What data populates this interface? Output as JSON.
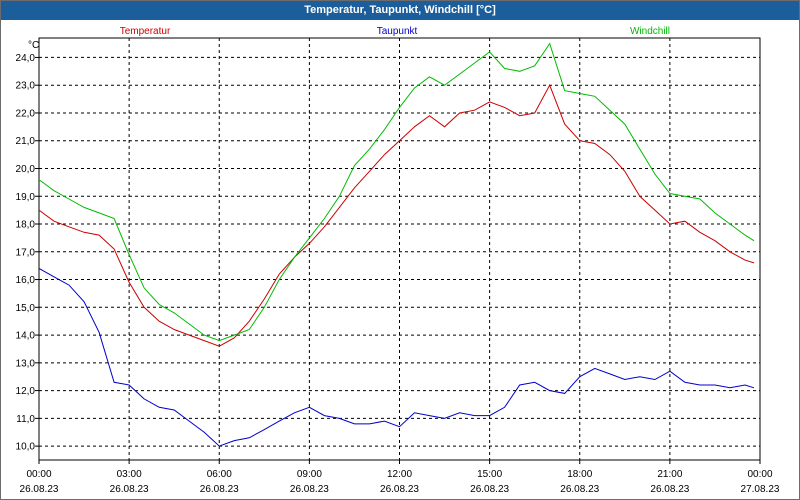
{
  "chart_data": {
    "type": "line",
    "title": "Temperatur, Taupunkt, Windchill [°C]",
    "ylabel": "°C",
    "ylim": [
      9.5,
      24.7
    ],
    "yticks": [
      10.0,
      11.0,
      12.0,
      13.0,
      14.0,
      15.0,
      16.0,
      17.0,
      18.0,
      19.0,
      20.0,
      21.0,
      22.0,
      23.0,
      24.0
    ],
    "ytick_labels": [
      "10,0",
      "11,0",
      "12,0",
      "13,0",
      "14,0",
      "15,0",
      "16,0",
      "17,0",
      "18,0",
      "19,0",
      "20,0",
      "21,0",
      "22,0",
      "23,0",
      "24,0"
    ],
    "xlim": [
      0,
      24
    ],
    "xticks": [
      {
        "time": "00:00",
        "date": "26.08.23"
      },
      {
        "time": "03:00",
        "date": "26.08.23"
      },
      {
        "time": "06:00",
        "date": "26.08.23"
      },
      {
        "time": "09:00",
        "date": "26.08.23"
      },
      {
        "time": "12:00",
        "date": "26.08.23"
      },
      {
        "time": "15:00",
        "date": "26.08.23"
      },
      {
        "time": "18:00",
        "date": "26.08.23"
      },
      {
        "time": "21:00",
        "date": "26.08.23"
      },
      {
        "time": "00:00",
        "date": "27.08.23"
      }
    ],
    "grid": true,
    "legend_position": "top",
    "series": [
      {
        "name": "Temperatur",
        "color": "#cc0000",
        "x": [
          0,
          0.5,
          1,
          1.5,
          2,
          2.5,
          3,
          3.5,
          4,
          4.5,
          5,
          5.5,
          6,
          6.5,
          7,
          7.5,
          8,
          8.5,
          9,
          9.5,
          10,
          10.5,
          11,
          11.5,
          12,
          12.5,
          13,
          13.5,
          14,
          14.5,
          15,
          15.5,
          16,
          16.5,
          17,
          17.5,
          18,
          18.5,
          19,
          19.5,
          20,
          20.5,
          21,
          21.5,
          22,
          22.5,
          23,
          23.5,
          23.8
        ],
        "y": [
          18.5,
          18.1,
          17.9,
          17.7,
          17.6,
          17.1,
          15.9,
          15.0,
          14.5,
          14.2,
          14.0,
          13.8,
          13.6,
          13.9,
          14.5,
          15.3,
          16.2,
          16.8,
          17.3,
          17.9,
          18.6,
          19.3,
          19.9,
          20.5,
          21.0,
          21.5,
          21.9,
          21.5,
          22.0,
          22.1,
          22.4,
          22.2,
          21.9,
          22.0,
          23.0,
          21.6,
          21.0,
          20.9,
          20.5,
          19.9,
          19.0,
          18.5,
          18.0,
          18.1,
          17.7,
          17.4,
          17.0,
          16.7,
          16.6
        ]
      },
      {
        "name": "Taupunkt",
        "color": "#0000cc",
        "x": [
          0,
          0.5,
          1,
          1.5,
          2,
          2.5,
          3,
          3.5,
          4,
          4.5,
          5,
          5.5,
          6,
          6.5,
          7,
          7.5,
          8,
          8.5,
          9,
          9.5,
          10,
          10.5,
          11,
          11.5,
          12,
          12.5,
          13,
          13.5,
          14,
          14.5,
          15,
          15.5,
          16,
          16.5,
          17,
          17.5,
          18,
          18.5,
          19,
          19.5,
          20,
          20.5,
          21,
          21.5,
          22,
          22.5,
          23,
          23.5,
          23.8
        ],
        "y": [
          16.4,
          16.1,
          15.8,
          15.2,
          14.1,
          12.3,
          12.2,
          11.7,
          11.4,
          11.3,
          10.9,
          10.5,
          10.0,
          10.2,
          10.3,
          10.6,
          10.9,
          11.2,
          11.4,
          11.1,
          11.0,
          10.8,
          10.8,
          10.9,
          10.7,
          11.2,
          11.1,
          11.0,
          11.2,
          11.1,
          11.1,
          11.4,
          12.2,
          12.3,
          12.0,
          11.9,
          12.5,
          12.8,
          12.6,
          12.4,
          12.5,
          12.4,
          12.7,
          12.3,
          12.2,
          12.2,
          12.1,
          12.2,
          12.1
        ]
      },
      {
        "name": "Windchill",
        "color": "#00bb00",
        "x": [
          0,
          0.5,
          1,
          1.5,
          2,
          2.5,
          3,
          3.5,
          4,
          4.5,
          5,
          5.5,
          6,
          6.5,
          7,
          7.5,
          8,
          8.5,
          9,
          9.5,
          10,
          10.5,
          11,
          11.5,
          12,
          12.5,
          13,
          13.5,
          14,
          14.5,
          15,
          15.5,
          16,
          16.5,
          17,
          17.5,
          18,
          18.5,
          19,
          19.5,
          20,
          20.5,
          21,
          21.5,
          22,
          22.5,
          23,
          23.5,
          23.8
        ],
        "y": [
          19.6,
          19.2,
          18.9,
          18.6,
          18.4,
          18.2,
          16.9,
          15.7,
          15.1,
          14.8,
          14.4,
          14.0,
          13.8,
          14.0,
          14.2,
          15.0,
          16.0,
          16.8,
          17.5,
          18.2,
          19.0,
          20.1,
          20.7,
          21.4,
          22.2,
          22.9,
          23.3,
          23.0,
          23.4,
          23.8,
          24.2,
          23.6,
          23.5,
          23.7,
          24.5,
          22.8,
          22.7,
          22.6,
          22.1,
          21.6,
          20.7,
          19.8,
          19.1,
          19.0,
          18.9,
          18.4,
          18.0,
          17.6,
          17.4
        ]
      }
    ]
  }
}
